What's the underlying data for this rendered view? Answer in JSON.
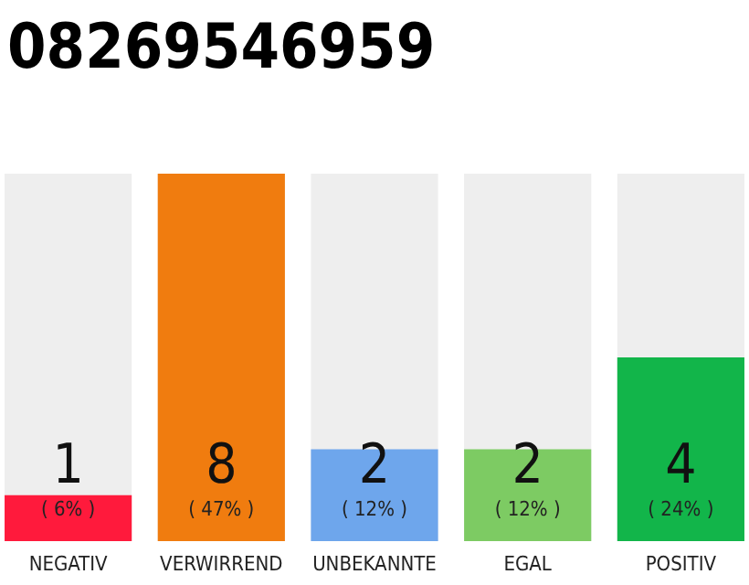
{
  "chart_data": {
    "type": "bar",
    "title": "08269546959",
    "categories": [
      "NEGATIV",
      "VERWIRREND",
      "UNBEKANNTE",
      "EGAL",
      "POSITIV"
    ],
    "values": [
      1,
      8,
      2,
      2,
      4
    ],
    "colors": [
      "#ff1a3c",
      "#f07c0f",
      "#6ea6ec",
      "#7dcb63",
      "#12b54a"
    ],
    "data_labels": true,
    "annotations": [
      "( 6% )",
      "( 47% )",
      "( 12% )",
      "( 12% )",
      "( 24% )"
    ],
    "tick_labels": "x"
  }
}
